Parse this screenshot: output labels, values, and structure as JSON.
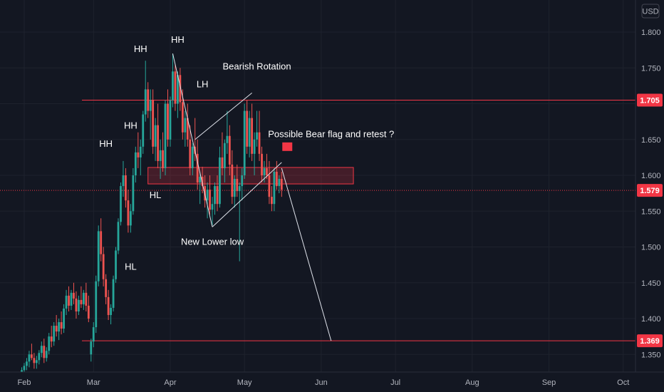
{
  "chart_data": {
    "type": "candlestick",
    "currency": "USD",
    "ylim": [
      1.32,
      1.83
    ],
    "y_ticks": [
      1.35,
      1.4,
      1.45,
      1.5,
      1.55,
      1.6,
      1.65,
      1.7,
      1.75,
      1.8
    ],
    "y_tick_labels": [
      "1.350",
      "1.400",
      "1.450",
      "1.500",
      "1.550",
      "1.600",
      "1.650",
      "1.700",
      "1.750",
      "1.800"
    ],
    "x_ticks": [
      {
        "label": "Feb",
        "day": 0
      },
      {
        "label": "Mar",
        "day": 28
      },
      {
        "label": "Apr",
        "day": 59
      },
      {
        "label": "May",
        "day": 89
      },
      {
        "label": "Jun",
        "day": 120
      },
      {
        "label": "Jul",
        "day": 150
      },
      {
        "label": "Aug",
        "day": 181
      },
      {
        "label": "Sep",
        "day": 212
      },
      {
        "label": "Oct",
        "day": 242
      }
    ],
    "price_levels": [
      {
        "label": "1.705",
        "value": 1.705,
        "style": "solid"
      },
      {
        "label": "1.579",
        "value": 1.579,
        "style": "dotted"
      },
      {
        "label": "1.369",
        "value": 1.369,
        "style": "solid"
      }
    ],
    "zone": {
      "from_day": 50,
      "to_day": 133,
      "low": 1.588,
      "high": 1.611
    },
    "colors": {
      "up": "#26a69a",
      "down": "#ef5350",
      "line": "#e0e3eb",
      "level": "#f23645",
      "zone": "#f23645",
      "background": "#131722",
      "axis_text": "#b2b5be",
      "bearish_text": "#f23645"
    },
    "candles": [
      [
        -1,
        1.325,
        1.332,
        1.318,
        1.328
      ],
      [
        0,
        1.328,
        1.338,
        1.322,
        1.334
      ],
      [
        1,
        1.334,
        1.345,
        1.328,
        1.34
      ],
      [
        2,
        1.34,
        1.355,
        1.332,
        1.35
      ],
      [
        3,
        1.35,
        1.365,
        1.342,
        1.345
      ],
      [
        4,
        1.345,
        1.352,
        1.33,
        1.338
      ],
      [
        5,
        1.338,
        1.348,
        1.33,
        1.342
      ],
      [
        6,
        1.342,
        1.356,
        1.336,
        1.352
      ],
      [
        7,
        1.352,
        1.368,
        1.346,
        1.362
      ],
      [
        8,
        1.362,
        1.372,
        1.338,
        1.345
      ],
      [
        9,
        1.345,
        1.36,
        1.34,
        1.355
      ],
      [
        10,
        1.355,
        1.38,
        1.35,
        1.375
      ],
      [
        11,
        1.375,
        1.39,
        1.36,
        1.368
      ],
      [
        12,
        1.368,
        1.395,
        1.362,
        1.39
      ],
      [
        13,
        1.39,
        1.405,
        1.375,
        1.382
      ],
      [
        14,
        1.382,
        1.4,
        1.37,
        1.395
      ],
      [
        15,
        1.395,
        1.41,
        1.378,
        1.386
      ],
      [
        16,
        1.386,
        1.42,
        1.38,
        1.414
      ],
      [
        17,
        1.414,
        1.44,
        1.405,
        1.432
      ],
      [
        18,
        1.432,
        1.445,
        1.41,
        1.418
      ],
      [
        19,
        1.418,
        1.44,
        1.412,
        1.436
      ],
      [
        20,
        1.436,
        1.45,
        1.42,
        1.428
      ],
      [
        21,
        1.428,
        1.438,
        1.4,
        1.41
      ],
      [
        22,
        1.41,
        1.432,
        1.405,
        1.426
      ],
      [
        23,
        1.426,
        1.445,
        1.415,
        1.42
      ],
      [
        24,
        1.42,
        1.44,
        1.412,
        1.436
      ],
      [
        25,
        1.436,
        1.45,
        1.41,
        1.418
      ],
      [
        26,
        1.418,
        1.432,
        1.395,
        1.4
      ],
      [
        27,
        1.35,
        1.372,
        1.34,
        1.368
      ],
      [
        28,
        1.368,
        1.395,
        1.36,
        1.388
      ],
      [
        29,
        1.388,
        1.46,
        1.38,
        1.452
      ],
      [
        30,
        1.452,
        1.53,
        1.445,
        1.522
      ],
      [
        31,
        1.522,
        1.54,
        1.48,
        1.49
      ],
      [
        32,
        1.49,
        1.5,
        1.445,
        1.455
      ],
      [
        33,
        1.455,
        1.462,
        1.42,
        1.43
      ],
      [
        34,
        1.43,
        1.44,
        1.398,
        1.405
      ],
      [
        35,
        1.405,
        1.42,
        1.392,
        1.415
      ],
      [
        36,
        1.415,
        1.46,
        1.41,
        1.455
      ],
      [
        37,
        1.455,
        1.5,
        1.45,
        1.495
      ],
      [
        38,
        1.495,
        1.54,
        1.49,
        1.535
      ],
      [
        39,
        1.535,
        1.59,
        1.53,
        1.585
      ],
      [
        40,
        1.585,
        1.62,
        1.57,
        1.6
      ],
      [
        41,
        1.6,
        1.61,
        1.555,
        1.565
      ],
      [
        42,
        1.565,
        1.58,
        1.52,
        1.53
      ],
      [
        43,
        1.53,
        1.56,
        1.52,
        1.55
      ],
      [
        44,
        1.55,
        1.61,
        1.545,
        1.6
      ],
      [
        45,
        1.6,
        1.64,
        1.59,
        1.632
      ],
      [
        46,
        1.632,
        1.66,
        1.61,
        1.625
      ],
      [
        47,
        1.625,
        1.65,
        1.6,
        1.64
      ],
      [
        48,
        1.64,
        1.69,
        1.63,
        1.685
      ],
      [
        49,
        1.685,
        1.76,
        1.675,
        1.72
      ],
      [
        50,
        1.72,
        1.73,
        1.68,
        1.69
      ],
      [
        51,
        1.69,
        1.72,
        1.65,
        1.705
      ],
      [
        52,
        1.705,
        1.72,
        1.63,
        1.64
      ],
      [
        53,
        1.64,
        1.68,
        1.62,
        1.67
      ],
      [
        54,
        1.67,
        1.7,
        1.61,
        1.62
      ],
      [
        55,
        1.62,
        1.65,
        1.595,
        1.635
      ],
      [
        56,
        1.635,
        1.66,
        1.605,
        1.61
      ],
      [
        57,
        1.61,
        1.705,
        1.6,
        1.7
      ],
      [
        58,
        1.7,
        1.72,
        1.64,
        1.65
      ],
      [
        59,
        1.65,
        1.71,
        1.64,
        1.705
      ],
      [
        60,
        1.705,
        1.77,
        1.695,
        1.745
      ],
      [
        61,
        1.745,
        1.755,
        1.69,
        1.7
      ],
      [
        62,
        1.7,
        1.745,
        1.68,
        1.74
      ],
      [
        63,
        1.74,
        1.75,
        1.69,
        1.702
      ],
      [
        64,
        1.702,
        1.72,
        1.65,
        1.66
      ],
      [
        65,
        1.66,
        1.69,
        1.64,
        1.68
      ],
      [
        66,
        1.68,
        1.7,
        1.64,
        1.65
      ],
      [
        67,
        1.65,
        1.67,
        1.6,
        1.61
      ],
      [
        68,
        1.61,
        1.645,
        1.6,
        1.64
      ],
      [
        69,
        1.64,
        1.68,
        1.62,
        1.63
      ],
      [
        70,
        1.63,
        1.65,
        1.58,
        1.59
      ],
      [
        71,
        1.59,
        1.605,
        1.56,
        1.598
      ],
      [
        72,
        1.598,
        1.612,
        1.575,
        1.585
      ],
      [
        73,
        1.585,
        1.6,
        1.555,
        1.565
      ],
      [
        74,
        1.565,
        1.59,
        1.54,
        1.58
      ],
      [
        75,
        1.58,
        1.6,
        1.545,
        1.552
      ],
      [
        76,
        1.552,
        1.57,
        1.53,
        1.56
      ],
      [
        77,
        1.56,
        1.59,
        1.545,
        1.585
      ],
      [
        78,
        1.585,
        1.6,
        1.55,
        1.56
      ],
      [
        79,
        1.56,
        1.64,
        1.555,
        1.625
      ],
      [
        80,
        1.625,
        1.66,
        1.6,
        1.61
      ],
      [
        81,
        1.61,
        1.65,
        1.59,
        1.645
      ],
      [
        82,
        1.645,
        1.69,
        1.63,
        1.655
      ],
      [
        83,
        1.655,
        1.67,
        1.6,
        1.615
      ],
      [
        84,
        1.615,
        1.635,
        1.56,
        1.57
      ],
      [
        85,
        1.57,
        1.6,
        1.555,
        1.595
      ],
      [
        86,
        1.595,
        1.615,
        1.57,
        1.578
      ],
      [
        87,
        1.578,
        1.59,
        1.48,
        1.585
      ],
      [
        88,
        1.585,
        1.61,
        1.565,
        1.6
      ],
      [
        89,
        1.6,
        1.7,
        1.595,
        1.69
      ],
      [
        90,
        1.69,
        1.705,
        1.63,
        1.64
      ],
      [
        91,
        1.64,
        1.69,
        1.625,
        1.68
      ],
      [
        92,
        1.68,
        1.7,
        1.62,
        1.63
      ],
      [
        93,
        1.63,
        1.66,
        1.6,
        1.65
      ],
      [
        94,
        1.65,
        1.69,
        1.64,
        1.66
      ],
      [
        95,
        1.66,
        1.69,
        1.62,
        1.63
      ],
      [
        96,
        1.63,
        1.64,
        1.59,
        1.6
      ],
      [
        97,
        1.6,
        1.62,
        1.59,
        1.61
      ],
      [
        98,
        1.61,
        1.63,
        1.595,
        1.6
      ],
      [
        99,
        1.6,
        1.62,
        1.56,
        1.57
      ],
      [
        100,
        1.57,
        1.585,
        1.55,
        1.56
      ],
      [
        101,
        1.56,
        1.61,
        1.55,
        1.605
      ],
      [
        102,
        1.605,
        1.62,
        1.58,
        1.585
      ],
      [
        103,
        1.585,
        1.6,
        1.575,
        1.595
      ],
      [
        104,
        1.595,
        1.605,
        1.57,
        1.58
      ]
    ],
    "trendlines": [
      {
        "points": [
          [
            60,
            1.77
          ],
          [
            76,
            1.528
          ]
        ]
      },
      {
        "points": [
          [
            76,
            1.528
          ],
          [
            104,
            1.618
          ]
        ]
      },
      {
        "points": [
          [
            69,
            1.65
          ],
          [
            92,
            1.715
          ]
        ]
      },
      {
        "points": [
          [
            104,
            1.61
          ],
          [
            124,
            1.369
          ]
        ]
      }
    ],
    "annotations": [
      {
        "text": "HH",
        "day": 62,
        "price": 1.785,
        "style": "white"
      },
      {
        "text": "HH",
        "day": 47,
        "price": 1.772,
        "style": "white"
      },
      {
        "text": "HH",
        "day": 43,
        "price": 1.665,
        "style": "white"
      },
      {
        "text": "HH",
        "day": 33,
        "price": 1.64,
        "style": "white"
      },
      {
        "text": "LH",
        "day": 72,
        "price": 1.723,
        "style": "white"
      },
      {
        "text": "HL",
        "day": 53,
        "price": 1.568,
        "style": "white"
      },
      {
        "text": "HL",
        "day": 43,
        "price": 1.468,
        "style": "white"
      },
      {
        "text": "New Lower low",
        "day": 76,
        "price": 1.503,
        "style": "white"
      },
      {
        "text": "Bearish Rotation",
        "day": 94,
        "price": 1.748,
        "style": "red"
      },
      {
        "text": "Possible Bear flag and retest ?",
        "day": 124,
        "price": 1.653,
        "style": "white"
      }
    ],
    "flag": {
      "day": 106,
      "price": 1.64
    }
  }
}
